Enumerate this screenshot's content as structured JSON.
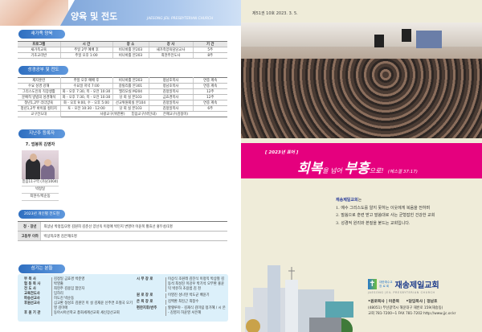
{
  "left": {
    "header": {
      "title": "양육 및 전도",
      "subtitle": "JAESONG JEIL PRESBYTERIAN CHURCH"
    },
    "newfamily": {
      "label": "새가족 양육",
      "columns": [
        "프로그램",
        "시 간",
        "장 소",
        "강 사",
        "기 간"
      ],
      "rows": [
        [
          "새가족교육",
          "주일 2부 예배 후",
          "비나바홀 본203",
          "새가족양육담당교사",
          "5주"
        ],
        [
          "기초교리반",
          "주일 오후 1:00",
          "비나바홀 본203",
          "최현주전도사",
          "8주"
        ]
      ]
    },
    "bible": {
      "label": "성경공부 및 전도",
      "rows": [
        [
          "제자훈련",
          "주일 오후 예배 후",
          "비나바홀 본203",
          "정남호목사",
          "연중 계속"
        ],
        [
          "수요 성경 강해",
          "수요일 저녁 7:00",
          "갈릴리홀 본301",
          "정남호목사",
          "연중 계속"
        ],
        [
          "그리스도인의 직장생활",
          "화 - 오후 7:30, 목 - 오전 10:30",
          "엘리오실 M204",
          "김정일목사",
          "12주"
        ],
        [
          "문예적 방법의 성경해석",
          "화 - 오후 7:30, 목 - 오전 10:30",
          "당 회 실 본103",
          "금효경목사",
          "12주"
        ],
        [
          "청년1,2부 리더양육",
          "화 - 오후 9:00, 수 - 오후 5:00",
          "선교위원회실 본104",
          "김정일목사",
          "연중 계속"
        ],
        [
          "청년1,2부 바이블 컬리지",
          "토 - 오전 10:30 - 12:00",
          "당 회 실 본103",
          "김정일목사",
          "6주"
        ]
      ],
      "last": {
        "label": "교구전도대",
        "values": [
          "사랑교구(위준환)",
          "믿음교구(박인내)",
          "은혜교구(김정미)"
        ]
      }
    },
    "registrants": {
      "label": "지난주 등록자",
      "title": "7. 엄봉휘 김영자",
      "lines": [
        "믿음11구역 (가남1004)",
        "박정일",
        "최현수/박순동"
      ]
    },
    "evangelism": {
      "label": "2023년 개인별 전도현황",
      "rows": [
        [
          "청 · 장년",
          "최상남 박정임/2명   김원희 김춘선 양선옥 이정애 박민지 변영아 이윤복 황효선 홍두성/1명"
        ],
        [
          "고등부 이하",
          "박상희/2명   김은혜/1명"
        ]
      ]
    },
    "servers": {
      "label": "섬기는 분들",
      "left": [
        [
          "부 목 사",
          "김정일 금효경 박준영"
        ],
        [
          "협 동 목 사",
          "박영출"
        ],
        [
          "전 도 사",
          "최현주 김용임 함인자"
        ],
        [
          "교육전도사",
          "임하리"
        ],
        [
          "파송선교사",
          "허도진 박순동"
        ],
        [
          "후원선교사",
          "심교환 정성호 김원민 이 설 김재윤 신주연 조철국 오기영 김미애"
        ],
        [
          "후 원 기 관",
          "동아시아선학교 총회세계선교회 세신장선교회"
        ]
      ],
      "right": [
        [
          "시 무 장 로",
          "이상식 조원래 김찬식 이정익 박상철 김동석 최성진 이강우 박기석 오부환 홍윤익 박유하 조용범 김 천"
        ],
        [
          "원 로 장 로",
          "이영진 성나현 박도균 배윤기"
        ],
        [
          "은 퇴 장 로",
          "김백환 최진근 최창수"
        ],
        [
          "편찬지휘/반주",
          "할렐루야 - 김재식 김미림 정가혜 / 시 온 - 김영지 허윤영 서은혜"
        ]
      ]
    }
  },
  "right": {
    "issue": "제51권  10호  2023. 3. 5.",
    "banner": {
      "kicker": "[ 2023년 표어 ]",
      "w1": "회복",
      "p1": "을 넘어 ",
      "w2": "부흥",
      "p2": "으로!",
      "ref": "(에스겔 37:17)"
    },
    "intro": {
      "heading": "재송제일교회",
      "suffix": "는",
      "items": [
        "1. 예수 그리스도를 알지 못하는 이웃에게 복음을 전하며",
        "2. 말씀으로 훈련 받고 말씀대로 사는 균형잡힌 건강한 교회",
        "3. 성경적 원리와 본질을 붙드는 교회입니다."
      ]
    },
    "church": {
      "denom1": "대한예수교",
      "denom2": "장 로 회",
      "name": "재송제일교회",
      "eng": "JAESONG JEIL PRESBYTERIAN CHURCH",
      "pastors": "•원로목사 | 이춘목     •담임목사 | 정남호",
      "address": "(48051) 부산광역시 해운대구 재반로 159(재송동)",
      "contact": "교회 781-7200~1  FAX 781-7202  http://www.jjc.or.kr"
    }
  },
  "colors": {
    "accent_blue": "#2f6fc0",
    "banner_magenta": "#e5007e",
    "cream": "#efecd9",
    "serve_box": "#dcf0fa"
  }
}
